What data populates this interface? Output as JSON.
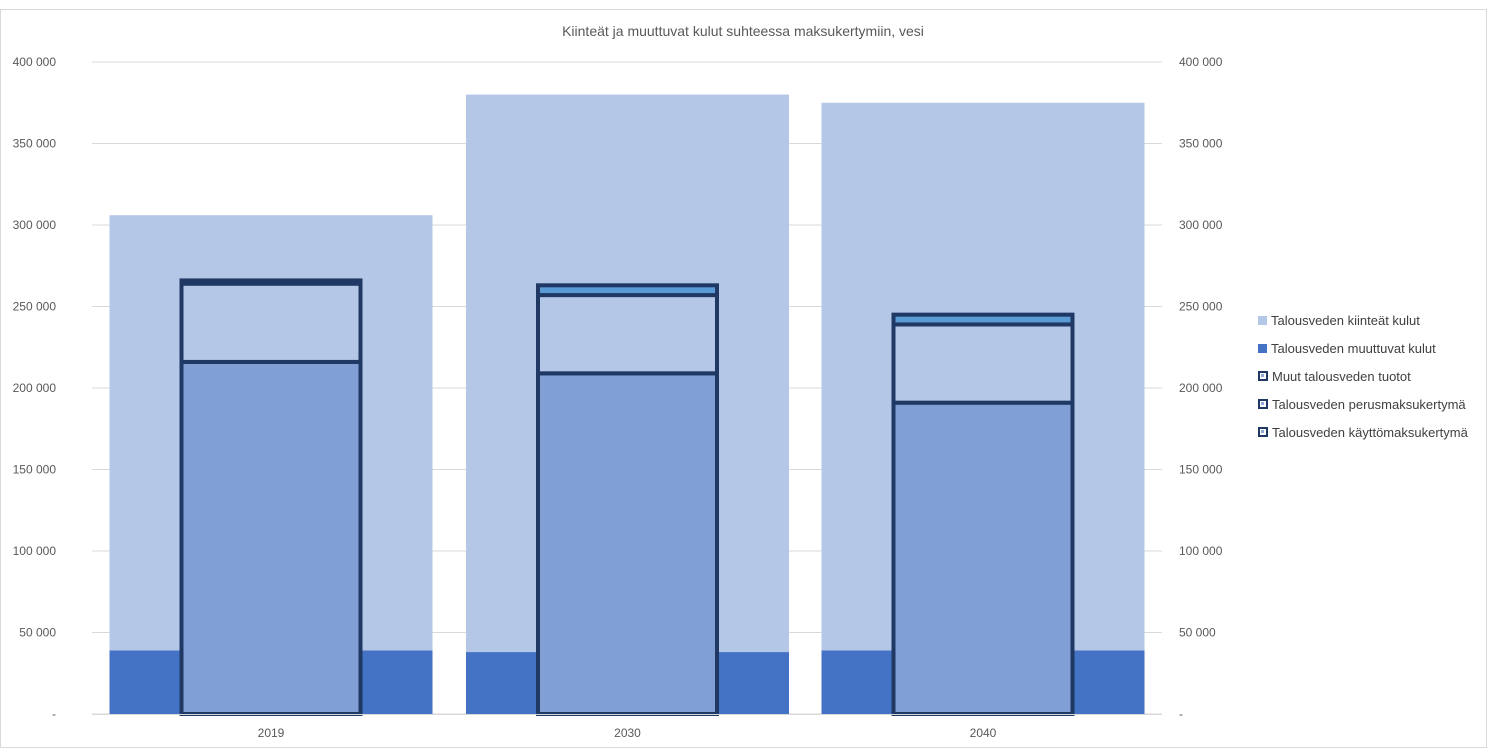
{
  "chart_data": {
    "type": "bar",
    "title": "Kiinteät ja muuttuvat kulut suhteessa maksukertymiin, vesi",
    "categories": [
      "2019",
      "2030",
      "2040"
    ],
    "ylim": [
      0,
      400000
    ],
    "y_ticks": [
      {
        "value": 0,
        "label": "-"
      },
      {
        "value": 50000,
        "label": "50 000"
      },
      {
        "value": 100000,
        "label": "100 000"
      },
      {
        "value": 150000,
        "label": "150 000"
      },
      {
        "value": 200000,
        "label": "200 000"
      },
      {
        "value": 250000,
        "label": "250 000"
      },
      {
        "value": 300000,
        "label": "300 000"
      },
      {
        "value": 350000,
        "label": "350 000"
      },
      {
        "value": 400000,
        "label": "400 000"
      }
    ],
    "grid": true,
    "legend_position": "right",
    "cost_series": [
      {
        "name": "Talousveden kiinteät kulut",
        "stack": "costs",
        "color": "#b4c7e7",
        "values": [
          267000,
          342000,
          336000
        ]
      },
      {
        "name": "Talousveden muuttuvat kulut",
        "stack": "costs",
        "color": "#4472c4",
        "values": [
          39000,
          38000,
          39000
        ]
      }
    ],
    "revenue_series": [
      {
        "name": "Talousveden käyttömaksukertymä",
        "stack": "revenues",
        "fill": "#7f9fd5",
        "values": [
          216000,
          209000,
          191000
        ]
      },
      {
        "name": "Talousveden perusmaksukertymä",
        "stack": "revenues",
        "fill": "#b4c7e7",
        "values": [
          48000,
          48000,
          48000
        ]
      },
      {
        "name": "Muut talousveden tuotot",
        "stack": "revenues",
        "fill": "#5b9bd5",
        "values": [
          2000,
          6000,
          6000
        ]
      }
    ],
    "legend": [
      {
        "name": "Talousveden kiinteät kulut",
        "style": "solid",
        "color": "#b4c7e7"
      },
      {
        "name": "Talousveden muuttuvat kulut",
        "style": "solid",
        "color": "#4472c4"
      },
      {
        "name": "Muut talousveden tuotot",
        "style": "outline"
      },
      {
        "name": "Talousveden perusmaksukertymä",
        "style": "outline"
      },
      {
        "name": "Talousveden käyttömaksukertymä",
        "style": "outline"
      }
    ],
    "outline_color": "#1f3864",
    "axis_text_color": "#595959",
    "gridline_color": "#d9d9d9"
  }
}
